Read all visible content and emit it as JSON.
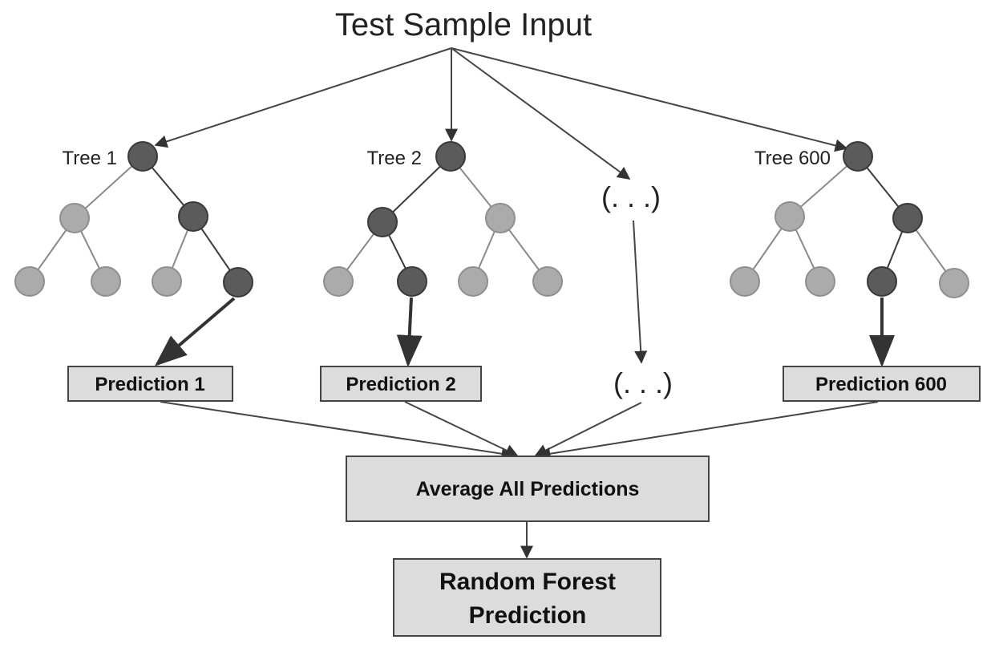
{
  "title": "Test Sample Input",
  "trees": [
    {
      "label": "Tree 1",
      "prediction": "Prediction 1"
    },
    {
      "label": "Tree 2",
      "prediction": "Prediction 2"
    },
    {
      "label": "Tree 600",
      "prediction": "Prediction 600"
    }
  ],
  "ellipsis": "(. . .)",
  "average_box": "Average All Predictions",
  "final_box": {
    "line1": "Random Forest",
    "line2": "Prediction"
  },
  "colors": {
    "box_fill": "#dcdcdc",
    "node_dark": "#5b5b5b",
    "node_light": "#ababab"
  }
}
